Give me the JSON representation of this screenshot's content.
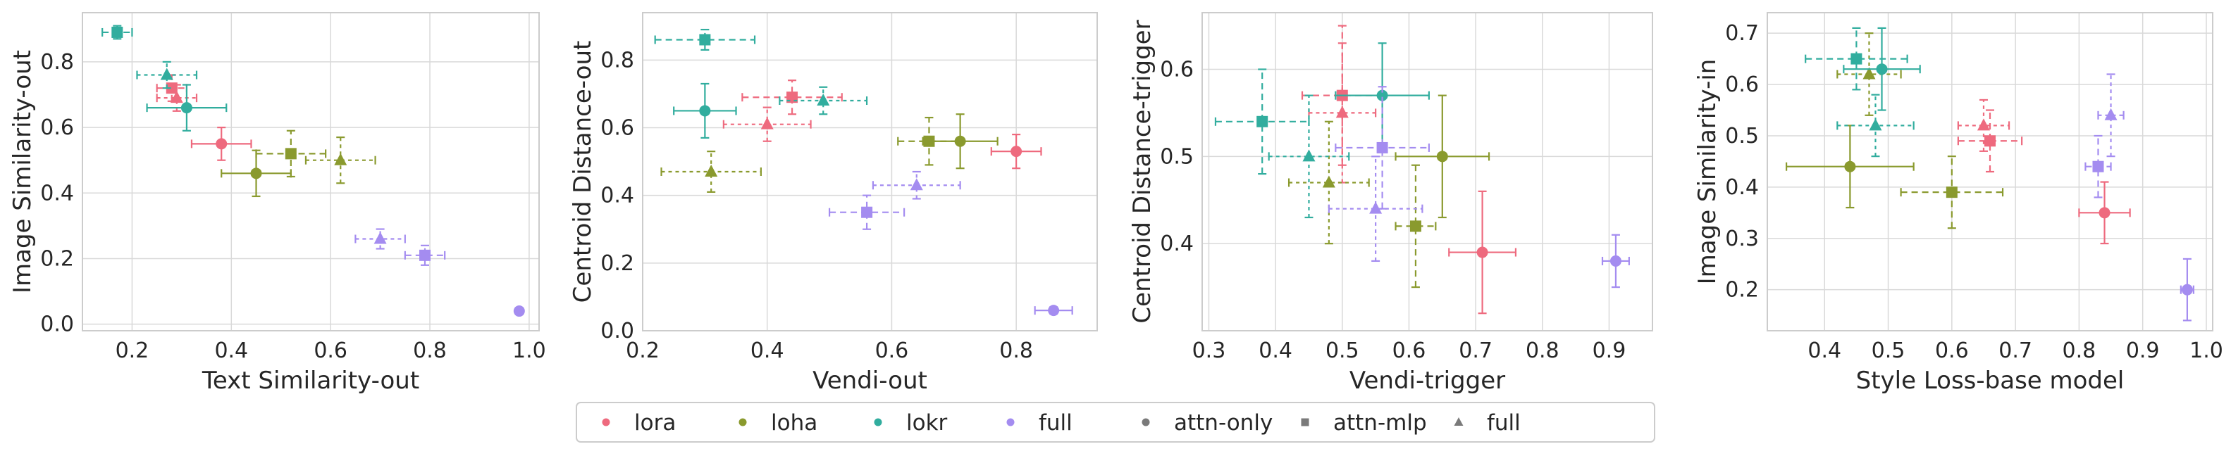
{
  "colors": {
    "lora": "#ee6a7e",
    "loha": "#8a9a2e",
    "lokr": "#31ad9e",
    "full": "#a48cf0",
    "marker_gray": "#7a7a7a",
    "grid": "#d9d9d9",
    "frame": "#cccccc"
  },
  "legend": {
    "items": [
      {
        "label": "lora",
        "marker": "circle",
        "color": "lora"
      },
      {
        "label": "loha",
        "marker": "circle",
        "color": "loha"
      },
      {
        "label": "lokr",
        "marker": "circle",
        "color": "lokr"
      },
      {
        "label": "full",
        "marker": "circle",
        "color": "full"
      },
      {
        "label": "attn-only",
        "marker": "circle",
        "color": "marker_gray"
      },
      {
        "label": "attn-mlp",
        "marker": "square",
        "color": "marker_gray"
      },
      {
        "label": "full",
        "marker": "triangle",
        "color": "marker_gray"
      }
    ]
  },
  "chart_data": [
    {
      "type": "scatter",
      "xlabel": "Text Similarity-out",
      "ylabel": "Image Similarity-out",
      "xlim": [
        0.1,
        1.02
      ],
      "ylim": [
        -0.02,
        0.95
      ],
      "xticks": [
        "0.2",
        "0.4",
        "0.6",
        "0.8",
        "1.0"
      ],
      "yticks": [
        "0.0",
        "0.2",
        "0.4",
        "0.6",
        "0.8"
      ],
      "points": [
        {
          "method": "lora",
          "config": "attn-only",
          "x": 0.38,
          "y": 0.55,
          "xerr": 0.06,
          "yerr": 0.05
        },
        {
          "method": "lora",
          "config": "attn-mlp",
          "x": 0.28,
          "y": 0.72,
          "xerr": 0.03,
          "yerr": 0.04
        },
        {
          "method": "lora",
          "config": "full",
          "x": 0.29,
          "y": 0.69,
          "xerr": 0.04,
          "yerr": 0.04
        },
        {
          "method": "loha",
          "config": "attn-only",
          "x": 0.45,
          "y": 0.46,
          "xerr": 0.07,
          "yerr": 0.07
        },
        {
          "method": "loha",
          "config": "attn-mlp",
          "x": 0.52,
          "y": 0.52,
          "xerr": 0.07,
          "yerr": 0.07
        },
        {
          "method": "loha",
          "config": "full",
          "x": 0.62,
          "y": 0.5,
          "xerr": 0.07,
          "yerr": 0.07
        },
        {
          "method": "lokr",
          "config": "attn-only",
          "x": 0.31,
          "y": 0.66,
          "xerr": 0.08,
          "yerr": 0.07
        },
        {
          "method": "lokr",
          "config": "attn-mlp",
          "x": 0.17,
          "y": 0.89,
          "xerr": 0.03,
          "yerr": 0.02
        },
        {
          "method": "lokr",
          "config": "full",
          "x": 0.27,
          "y": 0.76,
          "xerr": 0.06,
          "yerr": 0.04
        },
        {
          "method": "full",
          "config": "attn-only",
          "x": 0.98,
          "y": 0.04,
          "xerr": 0.0,
          "yerr": 0.01
        },
        {
          "method": "full",
          "config": "attn-mlp",
          "x": 0.79,
          "y": 0.21,
          "xerr": 0.04,
          "yerr": 0.03
        },
        {
          "method": "full",
          "config": "full",
          "x": 0.7,
          "y": 0.26,
          "xerr": 0.05,
          "yerr": 0.03
        }
      ]
    },
    {
      "type": "scatter",
      "xlabel": "Vendi-out",
      "ylabel": "Centroid Distance-out",
      "xlim": [
        0.2,
        0.93
      ],
      "ylim": [
        0.0,
        0.94
      ],
      "xticks": [
        "0.2",
        "0.4",
        "0.6",
        "0.8"
      ],
      "yticks": [
        "0.0",
        "0.2",
        "0.4",
        "0.6",
        "0.8"
      ],
      "points": [
        {
          "method": "lora",
          "config": "attn-only",
          "x": 0.8,
          "y": 0.53,
          "xerr": 0.04,
          "yerr": 0.05
        },
        {
          "method": "lora",
          "config": "attn-mlp",
          "x": 0.44,
          "y": 0.69,
          "xerr": 0.08,
          "yerr": 0.05
        },
        {
          "method": "lora",
          "config": "full",
          "x": 0.4,
          "y": 0.61,
          "xerr": 0.07,
          "yerr": 0.05
        },
        {
          "method": "loha",
          "config": "attn-only",
          "x": 0.71,
          "y": 0.56,
          "xerr": 0.06,
          "yerr": 0.08
        },
        {
          "method": "loha",
          "config": "attn-mlp",
          "x": 0.66,
          "y": 0.56,
          "xerr": 0.05,
          "yerr": 0.07
        },
        {
          "method": "loha",
          "config": "full",
          "x": 0.31,
          "y": 0.47,
          "xerr": 0.08,
          "yerr": 0.06
        },
        {
          "method": "lokr",
          "config": "attn-only",
          "x": 0.3,
          "y": 0.65,
          "xerr": 0.05,
          "yerr": 0.08
        },
        {
          "method": "lokr",
          "config": "attn-mlp",
          "x": 0.3,
          "y": 0.86,
          "xerr": 0.08,
          "yerr": 0.03
        },
        {
          "method": "lokr",
          "config": "full",
          "x": 0.49,
          "y": 0.68,
          "xerr": 0.07,
          "yerr": 0.04
        },
        {
          "method": "full",
          "config": "attn-only",
          "x": 0.86,
          "y": 0.06,
          "xerr": 0.03,
          "yerr": 0.01
        },
        {
          "method": "full",
          "config": "attn-mlp",
          "x": 0.56,
          "y": 0.35,
          "xerr": 0.06,
          "yerr": 0.05
        },
        {
          "method": "full",
          "config": "full",
          "x": 0.64,
          "y": 0.43,
          "xerr": 0.07,
          "yerr": 0.04
        }
      ]
    },
    {
      "type": "scatter",
      "xlabel": "Vendi-trigger",
      "ylabel": "Centroid Distance-trigger",
      "xlim": [
        0.29,
        0.965
      ],
      "ylim": [
        0.3,
        0.665
      ],
      "xticks": [
        "0.3",
        "0.4",
        "0.5",
        "0.6",
        "0.7",
        "0.8",
        "0.9"
      ],
      "yticks": [
        "0.4",
        "0.5",
        "0.6"
      ],
      "points": [
        {
          "method": "lora",
          "config": "attn-only",
          "x": 0.71,
          "y": 0.39,
          "xerr": 0.05,
          "yerr": 0.07
        },
        {
          "method": "lora",
          "config": "attn-mlp",
          "x": 0.5,
          "y": 0.57,
          "xerr": 0.06,
          "yerr": 0.08
        },
        {
          "method": "lora",
          "config": "full",
          "x": 0.5,
          "y": 0.55,
          "xerr": 0.05,
          "yerr": 0.08
        },
        {
          "method": "loha",
          "config": "attn-only",
          "x": 0.65,
          "y": 0.5,
          "xerr": 0.07,
          "yerr": 0.07
        },
        {
          "method": "loha",
          "config": "attn-mlp",
          "x": 0.61,
          "y": 0.42,
          "xerr": 0.03,
          "yerr": 0.07
        },
        {
          "method": "loha",
          "config": "full",
          "x": 0.48,
          "y": 0.47,
          "xerr": 0.06,
          "yerr": 0.07
        },
        {
          "method": "lokr",
          "config": "attn-only",
          "x": 0.56,
          "y": 0.57,
          "xerr": 0.07,
          "yerr": 0.06
        },
        {
          "method": "lokr",
          "config": "attn-mlp",
          "x": 0.38,
          "y": 0.54,
          "xerr": 0.07,
          "yerr": 0.06
        },
        {
          "method": "lokr",
          "config": "full",
          "x": 0.45,
          "y": 0.5,
          "xerr": 0.06,
          "yerr": 0.07
        },
        {
          "method": "full",
          "config": "attn-only",
          "x": 0.91,
          "y": 0.38,
          "xerr": 0.02,
          "yerr": 0.03
        },
        {
          "method": "full",
          "config": "attn-mlp",
          "x": 0.56,
          "y": 0.51,
          "xerr": 0.07,
          "yerr": 0.07
        },
        {
          "method": "full",
          "config": "full",
          "x": 0.55,
          "y": 0.44,
          "xerr": 0.07,
          "yerr": 0.06
        }
      ]
    },
    {
      "type": "scatter",
      "xlabel": "Style Loss-base model",
      "ylabel": "Image Similarity-in",
      "xlim": [
        0.31,
        1.01
      ],
      "ylim": [
        0.12,
        0.74
      ],
      "xticks": [
        "0.4",
        "0.5",
        "0.6",
        "0.7",
        "0.8",
        "0.9",
        "1.0"
      ],
      "yticks": [
        "0.2",
        "0.3",
        "0.4",
        "0.5",
        "0.6",
        "0.7"
      ],
      "points": [
        {
          "method": "lora",
          "config": "attn-only",
          "x": 0.84,
          "y": 0.35,
          "xerr": 0.04,
          "yerr": 0.06
        },
        {
          "method": "lora",
          "config": "attn-mlp",
          "x": 0.66,
          "y": 0.49,
          "xerr": 0.05,
          "yerr": 0.06
        },
        {
          "method": "lora",
          "config": "full",
          "x": 0.65,
          "y": 0.52,
          "xerr": 0.04,
          "yerr": 0.05
        },
        {
          "method": "loha",
          "config": "attn-only",
          "x": 0.44,
          "y": 0.44,
          "xerr": 0.1,
          "yerr": 0.08
        },
        {
          "method": "loha",
          "config": "attn-mlp",
          "x": 0.6,
          "y": 0.39,
          "xerr": 0.08,
          "yerr": 0.07
        },
        {
          "method": "loha",
          "config": "full",
          "x": 0.47,
          "y": 0.62,
          "xerr": 0.05,
          "yerr": 0.08
        },
        {
          "method": "lokr",
          "config": "attn-only",
          "x": 0.49,
          "y": 0.63,
          "xerr": 0.06,
          "yerr": 0.08
        },
        {
          "method": "lokr",
          "config": "attn-mlp",
          "x": 0.45,
          "y": 0.65,
          "xerr": 0.08,
          "yerr": 0.06
        },
        {
          "method": "lokr",
          "config": "full",
          "x": 0.48,
          "y": 0.52,
          "xerr": 0.06,
          "yerr": 0.06
        },
        {
          "method": "full",
          "config": "attn-only",
          "x": 0.97,
          "y": 0.2,
          "xerr": 0.01,
          "yerr": 0.06
        },
        {
          "method": "full",
          "config": "attn-mlp",
          "x": 0.83,
          "y": 0.44,
          "xerr": 0.02,
          "yerr": 0.06
        },
        {
          "method": "full",
          "config": "full",
          "x": 0.85,
          "y": 0.54,
          "xerr": 0.02,
          "yerr": 0.08
        }
      ]
    }
  ]
}
